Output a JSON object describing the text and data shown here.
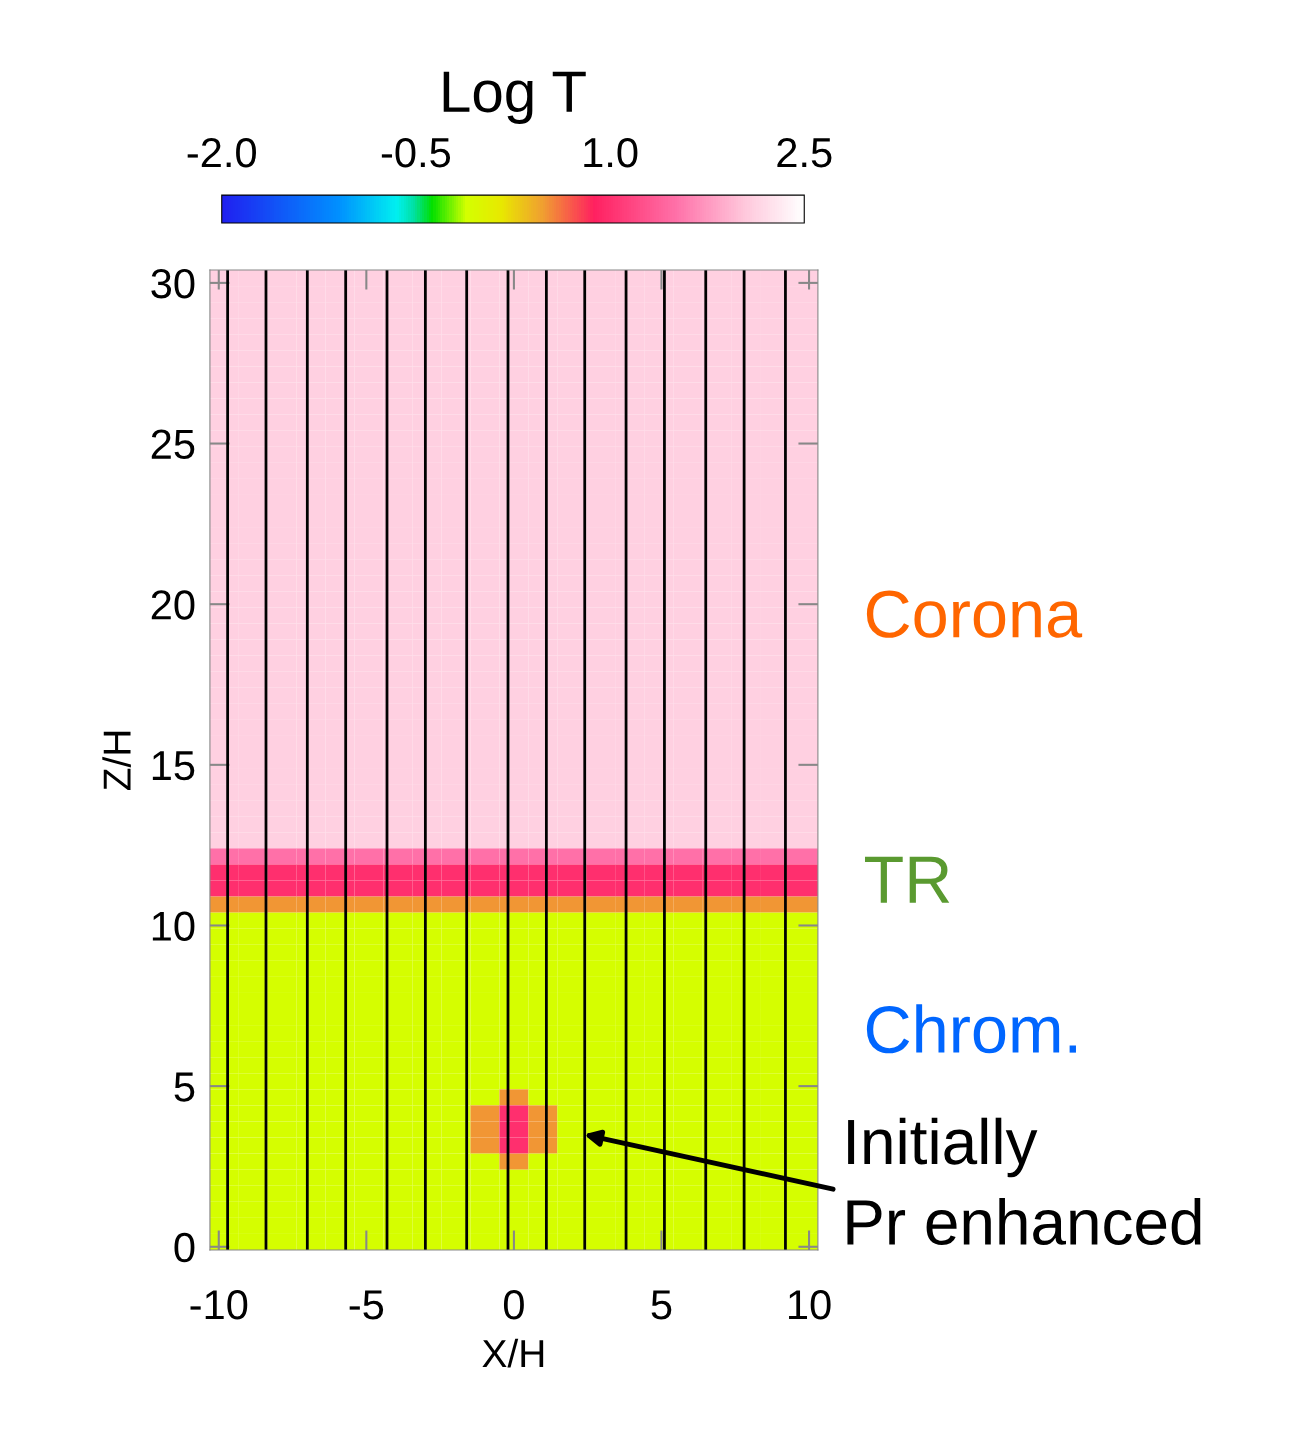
{
  "chart_data": {
    "type": "heatmap",
    "clabel": "Log T",
    "xlabel": "X/H",
    "ylabel": "Z/H",
    "xlim": [
      -10.3,
      10.3
    ],
    "ylim": [
      -0.1,
      30.4
    ],
    "xticks": [
      -10,
      -5,
      0,
      5,
      10
    ],
    "yticks": [
      0,
      5,
      10,
      15,
      20,
      25,
      30
    ],
    "clim": [
      -2.0,
      2.5
    ],
    "cticks": [
      {
        "value": -2.0,
        "label": "-2.0"
      },
      {
        "value": -0.5,
        "label": "-0.5"
      },
      {
        "value": 1.0,
        "label": "1.0"
      },
      {
        "value": 2.5,
        "label": "2.5"
      }
    ],
    "x": [
      -9.81,
      -8.83,
      -7.85,
      -6.87,
      -5.89,
      -4.91,
      -3.92,
      -2.94,
      -1.96,
      -0.98,
      0.0,
      0.98,
      1.96,
      2.94,
      3.92,
      4.91,
      5.89,
      6.87,
      7.85,
      8.83,
      9.81
    ],
    "y": [
      30.15,
      29.65,
      29.15,
      28.65,
      28.15,
      27.65,
      27.15,
      26.65,
      26.15,
      25.65,
      25.15,
      24.65,
      24.15,
      23.65,
      23.15,
      22.65,
      22.15,
      21.65,
      21.15,
      20.65,
      20.15,
      19.65,
      19.15,
      18.65,
      18.15,
      17.65,
      17.15,
      16.65,
      16.15,
      15.65,
      15.15,
      14.65,
      14.15,
      13.65,
      13.15,
      12.65,
      12.15,
      11.65,
      11.15,
      10.65,
      10.15,
      9.65,
      9.15,
      8.65,
      8.15,
      7.65,
      7.15,
      6.65,
      6.15,
      5.65,
      5.15,
      4.65,
      4.15,
      3.65,
      3.15,
      2.65,
      2.15,
      1.65,
      1.15,
      0.65,
      0.15
    ],
    "cells": [
      [
        2.1,
        2.1,
        2.1,
        2.1,
        2.1,
        2.1,
        2.1,
        2.1,
        2.1,
        2.1,
        2.1,
        2.1,
        2.1,
        2.1,
        2.1,
        2.1,
        2.1,
        2.1,
        2.1,
        2.1,
        2.1
      ],
      [
        2.1,
        2.1,
        2.1,
        2.1,
        2.1,
        2.1,
        2.1,
        2.1,
        2.1,
        2.1,
        2.1,
        2.1,
        2.1,
        2.1,
        2.1,
        2.1,
        2.1,
        2.1,
        2.1,
        2.1,
        2.1
      ],
      [
        2.1,
        2.1,
        2.1,
        2.1,
        2.1,
        2.1,
        2.1,
        2.1,
        2.1,
        2.1,
        2.1,
        2.1,
        2.1,
        2.1,
        2.1,
        2.1,
        2.1,
        2.1,
        2.1,
        2.1,
        2.1
      ],
      [
        2.1,
        2.1,
        2.1,
        2.1,
        2.1,
        2.1,
        2.1,
        2.1,
        2.1,
        2.1,
        2.1,
        2.1,
        2.1,
        2.1,
        2.1,
        2.1,
        2.1,
        2.1,
        2.1,
        2.1,
        2.1
      ],
      [
        2.1,
        2.1,
        2.1,
        2.1,
        2.1,
        2.1,
        2.1,
        2.1,
        2.1,
        2.1,
        2.1,
        2.1,
        2.1,
        2.1,
        2.1,
        2.1,
        2.1,
        2.1,
        2.1,
        2.1,
        2.1
      ],
      [
        2.1,
        2.1,
        2.1,
        2.1,
        2.1,
        2.1,
        2.1,
        2.1,
        2.1,
        2.1,
        2.1,
        2.1,
        2.1,
        2.1,
        2.1,
        2.1,
        2.1,
        2.1,
        2.1,
        2.1,
        2.1
      ],
      [
        2.1,
        2.1,
        2.1,
        2.1,
        2.1,
        2.1,
        2.1,
        2.1,
        2.1,
        2.1,
        2.1,
        2.1,
        2.1,
        2.1,
        2.1,
        2.1,
        2.1,
        2.1,
        2.1,
        2.1,
        2.1
      ],
      [
        2.1,
        2.1,
        2.1,
        2.1,
        2.1,
        2.1,
        2.1,
        2.1,
        2.1,
        2.1,
        2.1,
        2.1,
        2.1,
        2.1,
        2.1,
        2.1,
        2.1,
        2.1,
        2.1,
        2.1,
        2.1
      ],
      [
        2.1,
        2.1,
        2.1,
        2.1,
        2.1,
        2.1,
        2.1,
        2.1,
        2.1,
        2.1,
        2.1,
        2.1,
        2.1,
        2.1,
        2.1,
        2.1,
        2.1,
        2.1,
        2.1,
        2.1,
        2.1
      ],
      [
        2.1,
        2.1,
        2.1,
        2.1,
        2.1,
        2.1,
        2.1,
        2.1,
        2.1,
        2.1,
        2.1,
        2.1,
        2.1,
        2.1,
        2.1,
        2.1,
        2.1,
        2.1,
        2.1,
        2.1,
        2.1
      ],
      [
        2.1,
        2.1,
        2.1,
        2.1,
        2.1,
        2.1,
        2.1,
        2.1,
        2.1,
        2.1,
        2.1,
        2.1,
        2.1,
        2.1,
        2.1,
        2.1,
        2.1,
        2.1,
        2.1,
        2.1,
        2.1
      ],
      [
        2.1,
        2.1,
        2.1,
        2.1,
        2.1,
        2.1,
        2.1,
        2.1,
        2.1,
        2.1,
        2.1,
        2.1,
        2.1,
        2.1,
        2.1,
        2.1,
        2.1,
        2.1,
        2.1,
        2.1,
        2.1
      ],
      [
        2.1,
        2.1,
        2.1,
        2.1,
        2.1,
        2.1,
        2.1,
        2.1,
        2.1,
        2.1,
        2.1,
        2.1,
        2.1,
        2.1,
        2.1,
        2.1,
        2.1,
        2.1,
        2.1,
        2.1,
        2.1
      ],
      [
        2.1,
        2.1,
        2.1,
        2.1,
        2.1,
        2.1,
        2.1,
        2.1,
        2.1,
        2.1,
        2.1,
        2.1,
        2.1,
        2.1,
        2.1,
        2.1,
        2.1,
        2.1,
        2.1,
        2.1,
        2.1
      ],
      [
        2.1,
        2.1,
        2.1,
        2.1,
        2.1,
        2.1,
        2.1,
        2.1,
        2.1,
        2.1,
        2.1,
        2.1,
        2.1,
        2.1,
        2.1,
        2.1,
        2.1,
        2.1,
        2.1,
        2.1,
        2.1
      ],
      [
        2.1,
        2.1,
        2.1,
        2.1,
        2.1,
        2.1,
        2.1,
        2.1,
        2.1,
        2.1,
        2.1,
        2.1,
        2.1,
        2.1,
        2.1,
        2.1,
        2.1,
        2.1,
        2.1,
        2.1,
        2.1
      ],
      [
        2.1,
        2.1,
        2.1,
        2.1,
        2.1,
        2.1,
        2.1,
        2.1,
        2.1,
        2.1,
        2.1,
        2.1,
        2.1,
        2.1,
        2.1,
        2.1,
        2.1,
        2.1,
        2.1,
        2.1,
        2.1
      ],
      [
        2.1,
        2.1,
        2.1,
        2.1,
        2.1,
        2.1,
        2.1,
        2.1,
        2.1,
        2.1,
        2.1,
        2.1,
        2.1,
        2.1,
        2.1,
        2.1,
        2.1,
        2.1,
        2.1,
        2.1,
        2.1
      ],
      [
        2.1,
        2.1,
        2.1,
        2.1,
        2.1,
        2.1,
        2.1,
        2.1,
        2.1,
        2.1,
        2.1,
        2.1,
        2.1,
        2.1,
        2.1,
        2.1,
        2.1,
        2.1,
        2.1,
        2.1,
        2.1
      ],
      [
        2.1,
        2.1,
        2.1,
        2.1,
        2.1,
        2.1,
        2.1,
        2.1,
        2.1,
        2.1,
        2.1,
        2.1,
        2.1,
        2.1,
        2.1,
        2.1,
        2.1,
        2.1,
        2.1,
        2.1,
        2.1
      ],
      [
        2.1,
        2.1,
        2.1,
        2.1,
        2.1,
        2.1,
        2.1,
        2.1,
        2.1,
        2.1,
        2.1,
        2.1,
        2.1,
        2.1,
        2.1,
        2.1,
        2.1,
        2.1,
        2.1,
        2.1,
        2.1
      ],
      [
        2.1,
        2.1,
        2.1,
        2.1,
        2.1,
        2.1,
        2.1,
        2.1,
        2.1,
        2.1,
        2.1,
        2.1,
        2.1,
        2.1,
        2.1,
        2.1,
        2.1,
        2.1,
        2.1,
        2.1,
        2.1
      ],
      [
        2.1,
        2.1,
        2.1,
        2.1,
        2.1,
        2.1,
        2.1,
        2.1,
        2.1,
        2.1,
        2.1,
        2.1,
        2.1,
        2.1,
        2.1,
        2.1,
        2.1,
        2.1,
        2.1,
        2.1,
        2.1
      ],
      [
        2.1,
        2.1,
        2.1,
        2.1,
        2.1,
        2.1,
        2.1,
        2.1,
        2.1,
        2.1,
        2.1,
        2.1,
        2.1,
        2.1,
        2.1,
        2.1,
        2.1,
        2.1,
        2.1,
        2.1,
        2.1
      ],
      [
        2.1,
        2.1,
        2.1,
        2.1,
        2.1,
        2.1,
        2.1,
        2.1,
        2.1,
        2.1,
        2.1,
        2.1,
        2.1,
        2.1,
        2.1,
        2.1,
        2.1,
        2.1,
        2.1,
        2.1,
        2.1
      ],
      [
        2.1,
        2.1,
        2.1,
        2.1,
        2.1,
        2.1,
        2.1,
        2.1,
        2.1,
        2.1,
        2.1,
        2.1,
        2.1,
        2.1,
        2.1,
        2.1,
        2.1,
        2.1,
        2.1,
        2.1,
        2.1
      ],
      [
        2.1,
        2.1,
        2.1,
        2.1,
        2.1,
        2.1,
        2.1,
        2.1,
        2.1,
        2.1,
        2.1,
        2.1,
        2.1,
        2.1,
        2.1,
        2.1,
        2.1,
        2.1,
        2.1,
        2.1,
        2.1
      ],
      [
        2.1,
        2.1,
        2.1,
        2.1,
        2.1,
        2.1,
        2.1,
        2.1,
        2.1,
        2.1,
        2.1,
        2.1,
        2.1,
        2.1,
        2.1,
        2.1,
        2.1,
        2.1,
        2.1,
        2.1,
        2.1
      ],
      [
        2.1,
        2.1,
        2.1,
        2.1,
        2.1,
        2.1,
        2.1,
        2.1,
        2.1,
        2.1,
        2.1,
        2.1,
        2.1,
        2.1,
        2.1,
        2.1,
        2.1,
        2.1,
        2.1,
        2.1,
        2.1
      ],
      [
        2.1,
        2.1,
        2.1,
        2.1,
        2.1,
        2.1,
        2.1,
        2.1,
        2.1,
        2.1,
        2.1,
        2.1,
        2.1,
        2.1,
        2.1,
        2.1,
        2.1,
        2.1,
        2.1,
        2.1,
        2.1
      ],
      [
        2.1,
        2.1,
        2.1,
        2.1,
        2.1,
        2.1,
        2.1,
        2.1,
        2.1,
        2.1,
        2.1,
        2.1,
        2.1,
        2.1,
        2.1,
        2.1,
        2.1,
        2.1,
        2.1,
        2.1,
        2.1
      ],
      [
        2.1,
        2.1,
        2.1,
        2.1,
        2.1,
        2.1,
        2.1,
        2.1,
        2.1,
        2.1,
        2.1,
        2.1,
        2.1,
        2.1,
        2.1,
        2.1,
        2.1,
        2.1,
        2.1,
        2.1,
        2.1
      ],
      [
        2.1,
        2.1,
        2.1,
        2.1,
        2.1,
        2.1,
        2.1,
        2.1,
        2.1,
        2.1,
        2.1,
        2.1,
        2.1,
        2.1,
        2.1,
        2.1,
        2.1,
        2.1,
        2.1,
        2.1,
        2.1
      ],
      [
        2.1,
        2.1,
        2.1,
        2.1,
        2.1,
        2.1,
        2.1,
        2.1,
        2.1,
        2.1,
        2.1,
        2.1,
        2.1,
        2.1,
        2.1,
        2.1,
        2.1,
        2.1,
        2.1,
        2.1,
        2.1
      ],
      [
        2.1,
        2.1,
        2.1,
        2.1,
        2.1,
        2.1,
        2.1,
        2.1,
        2.1,
        2.1,
        2.1,
        2.1,
        2.1,
        2.1,
        2.1,
        2.1,
        2.1,
        2.1,
        2.1,
        2.1,
        2.1
      ],
      [
        2.1,
        2.1,
        2.1,
        2.1,
        2.1,
        2.1,
        2.1,
        2.1,
        2.1,
        2.1,
        2.1,
        2.1,
        2.1,
        2.1,
        2.1,
        2.1,
        2.1,
        2.1,
        2.1,
        2.1,
        2.1
      ],
      [
        1.5,
        1.5,
        1.5,
        1.5,
        1.5,
        1.5,
        1.5,
        1.5,
        1.5,
        1.5,
        1.5,
        1.5,
        1.5,
        1.5,
        1.5,
        1.5,
        1.5,
        1.5,
        1.5,
        1.5,
        1.5
      ],
      [
        1.0,
        1.0,
        1.0,
        1.0,
        1.0,
        1.0,
        1.0,
        1.0,
        1.0,
        1.0,
        1.0,
        1.0,
        1.0,
        1.0,
        1.0,
        1.0,
        1.0,
        1.0,
        1.0,
        1.0,
        1.0
      ],
      [
        1.0,
        1.0,
        1.0,
        1.0,
        1.0,
        1.0,
        1.0,
        1.0,
        1.0,
        1.0,
        1.0,
        1.0,
        1.0,
        1.0,
        1.0,
        1.0,
        1.0,
        1.0,
        1.0,
        1.0,
        1.0
      ],
      [
        0.5,
        0.5,
        0.5,
        0.5,
        0.5,
        0.5,
        0.5,
        0.5,
        0.5,
        0.5,
        0.5,
        0.5,
        0.5,
        0.5,
        0.5,
        0.5,
        0.5,
        0.5,
        0.5,
        0.5,
        0.5
      ],
      [
        -0.1,
        -0.1,
        -0.1,
        -0.1,
        -0.1,
        -0.1,
        -0.1,
        -0.1,
        -0.1,
        -0.1,
        -0.1,
        -0.1,
        -0.1,
        -0.1,
        -0.1,
        -0.1,
        -0.1,
        -0.1,
        -0.1,
        -0.1,
        -0.1
      ],
      [
        -0.1,
        -0.1,
        -0.1,
        -0.1,
        -0.1,
        -0.1,
        -0.1,
        -0.1,
        -0.1,
        -0.1,
        -0.1,
        -0.1,
        -0.1,
        -0.1,
        -0.1,
        -0.1,
        -0.1,
        -0.1,
        -0.1,
        -0.1,
        -0.1
      ],
      [
        -0.1,
        -0.1,
        -0.1,
        -0.1,
        -0.1,
        -0.1,
        -0.1,
        -0.1,
        -0.1,
        -0.1,
        -0.1,
        -0.1,
        -0.1,
        -0.1,
        -0.1,
        -0.1,
        -0.1,
        -0.1,
        -0.1,
        -0.1,
        -0.1
      ],
      [
        -0.1,
        -0.1,
        -0.1,
        -0.1,
        -0.1,
        -0.1,
        -0.1,
        -0.1,
        -0.1,
        -0.1,
        -0.1,
        -0.1,
        -0.1,
        -0.1,
        -0.1,
        -0.1,
        -0.1,
        -0.1,
        -0.1,
        -0.1,
        -0.1
      ],
      [
        -0.1,
        -0.1,
        -0.1,
        -0.1,
        -0.1,
        -0.1,
        -0.1,
        -0.1,
        -0.1,
        -0.1,
        -0.1,
        -0.1,
        -0.1,
        -0.1,
        -0.1,
        -0.1,
        -0.1,
        -0.1,
        -0.1,
        -0.1,
        -0.1
      ],
      [
        -0.1,
        -0.1,
        -0.1,
        -0.1,
        -0.1,
        -0.1,
        -0.1,
        -0.1,
        -0.1,
        -0.1,
        -0.1,
        -0.1,
        -0.1,
        -0.1,
        -0.1,
        -0.1,
        -0.1,
        -0.1,
        -0.1,
        -0.1,
        -0.1
      ],
      [
        -0.1,
        -0.1,
        -0.1,
        -0.1,
        -0.1,
        -0.1,
        -0.1,
        -0.1,
        -0.1,
        -0.1,
        -0.1,
        -0.1,
        -0.1,
        -0.1,
        -0.1,
        -0.1,
        -0.1,
        -0.1,
        -0.1,
        -0.1,
        -0.1
      ],
      [
        -0.1,
        -0.1,
        -0.1,
        -0.1,
        -0.1,
        -0.1,
        -0.1,
        -0.1,
        -0.1,
        -0.1,
        -0.1,
        -0.1,
        -0.1,
        -0.1,
        -0.1,
        -0.1,
        -0.1,
        -0.1,
        -0.1,
        -0.1,
        -0.1
      ],
      [
        -0.1,
        -0.1,
        -0.1,
        -0.1,
        -0.1,
        -0.1,
        -0.1,
        -0.1,
        -0.1,
        -0.1,
        -0.1,
        -0.1,
        -0.1,
        -0.1,
        -0.1,
        -0.1,
        -0.1,
        -0.1,
        -0.1,
        -0.1,
        -0.1
      ],
      [
        -0.1,
        -0.1,
        -0.1,
        -0.1,
        -0.1,
        -0.1,
        -0.1,
        -0.1,
        -0.1,
        -0.1,
        -0.1,
        -0.1,
        -0.1,
        -0.1,
        -0.1,
        -0.1,
        -0.1,
        -0.1,
        -0.1,
        -0.1,
        -0.1
      ],
      [
        -0.1,
        -0.1,
        -0.1,
        -0.1,
        -0.1,
        -0.1,
        -0.1,
        -0.1,
        -0.1,
        -0.1,
        -0.1,
        -0.1,
        -0.1,
        -0.1,
        -0.1,
        -0.1,
        -0.1,
        -0.1,
        -0.1,
        -0.1,
        -0.1
      ],
      [
        -0.1,
        -0.1,
        -0.1,
        -0.1,
        -0.1,
        -0.1,
        -0.1,
        -0.1,
        -0.1,
        -0.1,
        0.5,
        -0.1,
        -0.1,
        -0.1,
        -0.1,
        -0.1,
        -0.1,
        -0.1,
        -0.1,
        -0.1,
        -0.1
      ],
      [
        -0.1,
        -0.1,
        -0.1,
        -0.1,
        -0.1,
        -0.1,
        -0.1,
        -0.1,
        -0.1,
        0.5,
        1.0,
        0.5,
        -0.1,
        -0.1,
        -0.1,
        -0.1,
        -0.1,
        -0.1,
        -0.1,
        -0.1,
        -0.1
      ],
      [
        -0.1,
        -0.1,
        -0.1,
        -0.1,
        -0.1,
        -0.1,
        -0.1,
        -0.1,
        -0.1,
        0.5,
        1.0,
        0.5,
        -0.1,
        -0.1,
        -0.1,
        -0.1,
        -0.1,
        -0.1,
        -0.1,
        -0.1,
        -0.1
      ],
      [
        -0.1,
        -0.1,
        -0.1,
        -0.1,
        -0.1,
        -0.1,
        -0.1,
        -0.1,
        -0.1,
        0.5,
        1.0,
        0.5,
        -0.1,
        -0.1,
        -0.1,
        -0.1,
        -0.1,
        -0.1,
        -0.1,
        -0.1,
        -0.1
      ],
      [
        -0.1,
        -0.1,
        -0.1,
        -0.1,
        -0.1,
        -0.1,
        -0.1,
        -0.1,
        -0.1,
        -0.1,
        0.5,
        -0.1,
        -0.1,
        -0.1,
        -0.1,
        -0.1,
        -0.1,
        -0.1,
        -0.1,
        -0.1,
        -0.1
      ],
      [
        -0.1,
        -0.1,
        -0.1,
        -0.1,
        -0.1,
        -0.1,
        -0.1,
        -0.1,
        -0.1,
        -0.1,
        -0.1,
        -0.1,
        -0.1,
        -0.1,
        -0.1,
        -0.1,
        -0.1,
        -0.1,
        -0.1,
        -0.1,
        -0.1
      ],
      [
        -0.1,
        -0.1,
        -0.1,
        -0.1,
        -0.1,
        -0.1,
        -0.1,
        -0.1,
        -0.1,
        -0.1,
        -0.1,
        -0.1,
        -0.1,
        -0.1,
        -0.1,
        -0.1,
        -0.1,
        -0.1,
        -0.1,
        -0.1,
        -0.1
      ],
      [
        -0.1,
        -0.1,
        -0.1,
        -0.1,
        -0.1,
        -0.1,
        -0.1,
        -0.1,
        -0.1,
        -0.1,
        -0.1,
        -0.1,
        -0.1,
        -0.1,
        -0.1,
        -0.1,
        -0.1,
        -0.1,
        -0.1,
        -0.1,
        -0.1
      ],
      [
        -0.1,
        -0.1,
        -0.1,
        -0.1,
        -0.1,
        -0.1,
        -0.1,
        -0.1,
        -0.1,
        -0.1,
        -0.1,
        -0.1,
        -0.1,
        -0.1,
        -0.1,
        -0.1,
        -0.1,
        -0.1,
        -0.1,
        -0.1,
        -0.1
      ],
      [
        -0.1,
        -0.1,
        -0.1,
        -0.1,
        -0.1,
        -0.1,
        -0.1,
        -0.1,
        -0.1,
        -0.1,
        -0.1,
        -0.1,
        -0.1,
        -0.1,
        -0.1,
        -0.1,
        -0.1,
        -0.1,
        -0.1,
        -0.1,
        -0.1
      ]
    ],
    "ref_lines": [
      {
        "axis": "x",
        "value": -9.7,
        "color": "#000000"
      },
      {
        "axis": "x",
        "value": -8.4,
        "color": "#000000"
      },
      {
        "axis": "x",
        "value": -7.0,
        "color": "#000000"
      },
      {
        "axis": "x",
        "value": -5.7,
        "color": "#000000"
      },
      {
        "axis": "x",
        "value": -4.3,
        "color": "#000000"
      },
      {
        "axis": "x",
        "value": -3.0,
        "color": "#000000"
      },
      {
        "axis": "x",
        "value": -1.6,
        "color": "#000000"
      },
      {
        "axis": "x",
        "value": -0.2,
        "color": "#000000"
      },
      {
        "axis": "x",
        "value": 1.1,
        "color": "#000000"
      },
      {
        "axis": "x",
        "value": 2.4,
        "color": "#000000"
      },
      {
        "axis": "x",
        "value": 3.8,
        "color": "#000000"
      },
      {
        "axis": "x",
        "value": 5.1,
        "color": "#000000"
      },
      {
        "axis": "x",
        "value": 6.5,
        "color": "#000000"
      },
      {
        "axis": "x",
        "value": 7.8,
        "color": "#000000"
      },
      {
        "axis": "x",
        "value": 9.2,
        "color": "#000000"
      }
    ],
    "annotations": [
      "Corona",
      "TR",
      "Chrom.",
      "Initially\nPr enhanced"
    ]
  }
}
